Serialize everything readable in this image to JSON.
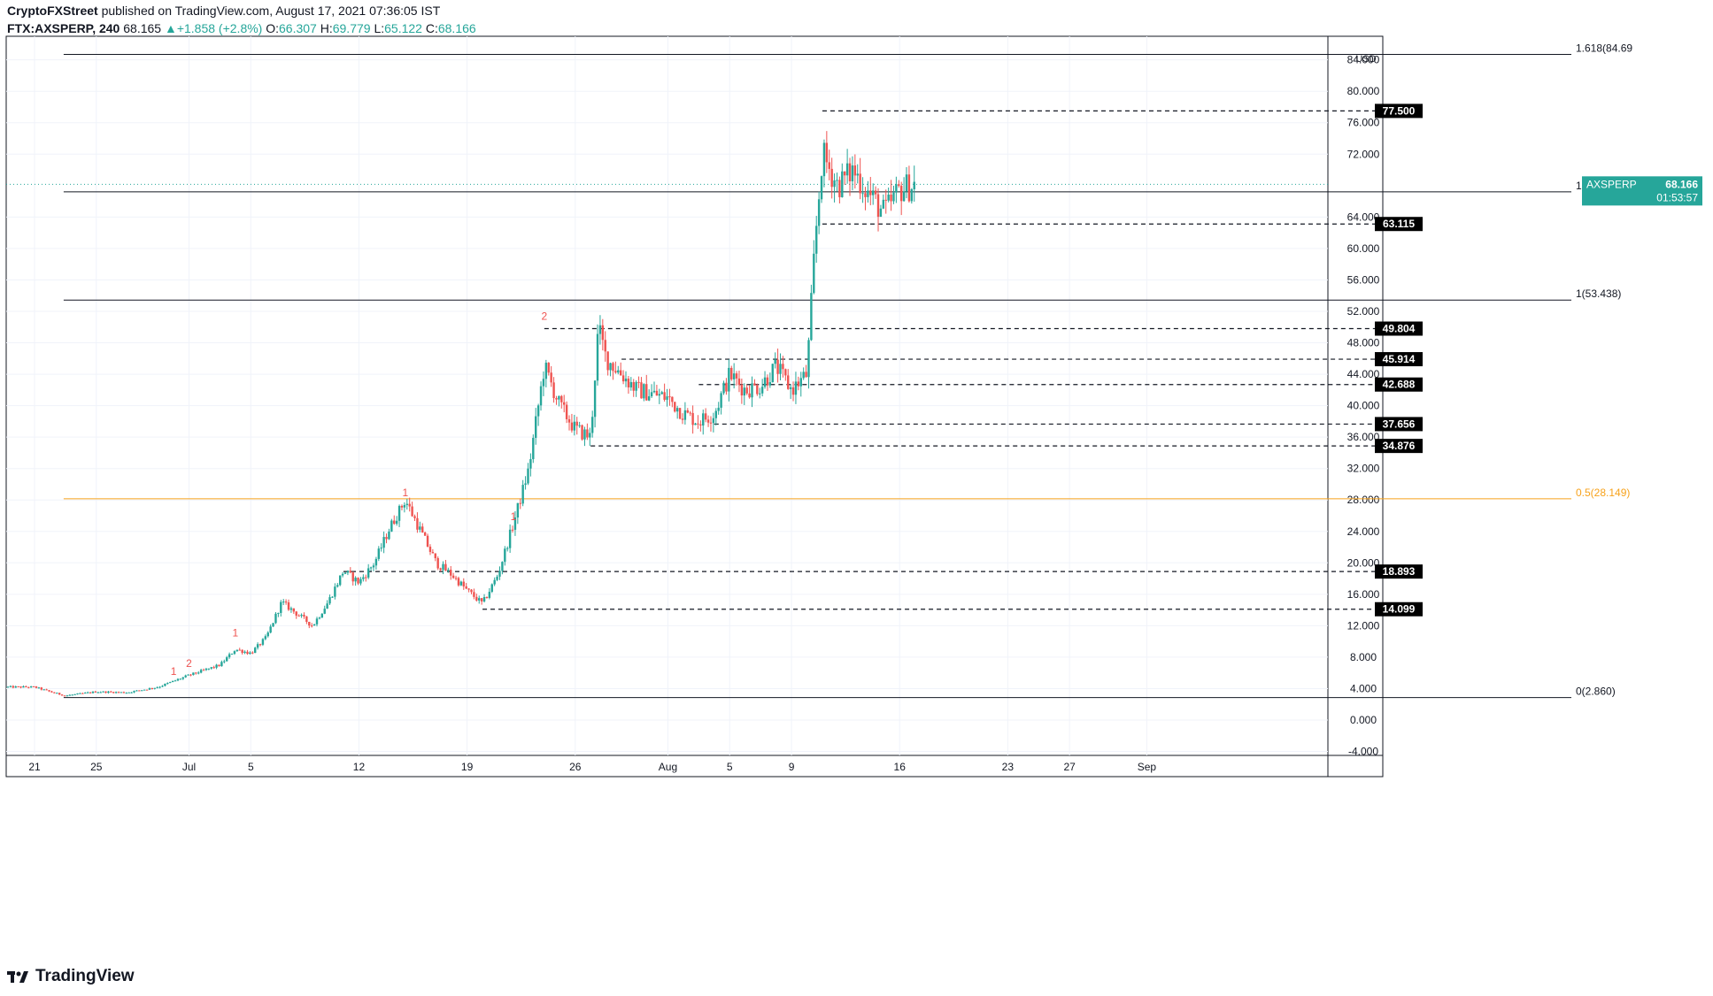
{
  "header": {
    "publisher": "CryptoFXStreet",
    "published_text": "published on TradingView.com, August 17, 2021 07:36:05 IST",
    "symbol_line": "FTX:AXSPERP, 240",
    "last": "68.165",
    "change": "+1.858 (+2.8%)",
    "o_label": "O:",
    "o": "66.307",
    "h_label": "H:",
    "h": "69.779",
    "l_label": "L:",
    "l": "65.122",
    "c_label": "C:",
    "c": "68.166"
  },
  "footer": {
    "brand": "TradingView"
  },
  "colors": {
    "up": "#26a69a",
    "down": "#ef5350",
    "fib_half": "#f7a21b",
    "price_tag": "#26a69a",
    "label_bg": "#000000"
  },
  "chart_data": {
    "type": "candlestick",
    "symbol": "AXSPERP",
    "currency": "USD",
    "ylim": [
      -4.5,
      87
    ],
    "x_ticks": [
      {
        "label": "21",
        "date": "2021-06-21"
      },
      {
        "label": "25",
        "date": "2021-06-25"
      },
      {
        "label": "Jul",
        "date": "2021-07-01"
      },
      {
        "label": "5",
        "date": "2021-07-05"
      },
      {
        "label": "12",
        "date": "2021-07-12"
      },
      {
        "label": "19",
        "date": "2021-07-19"
      },
      {
        "label": "26",
        "date": "2021-07-26"
      },
      {
        "label": "Aug",
        "date": "2021-08-01"
      },
      {
        "label": "5",
        "date": "2021-08-05"
      },
      {
        "label": "9",
        "date": "2021-08-09"
      },
      {
        "label": "16",
        "date": "2021-08-16"
      },
      {
        "label": "23",
        "date": "2021-08-23"
      },
      {
        "label": "27",
        "date": "2021-08-27"
      },
      {
        "label": "Sep",
        "date": "2021-09-01"
      }
    ],
    "y_ticks": [
      "-4.000",
      "0.000",
      "4.000",
      "8.000",
      "12.000",
      "16.000",
      "20.000",
      "24.000",
      "28.000",
      "32.000",
      "36.000",
      "40.000",
      "44.000",
      "48.000",
      "52.000",
      "56.000",
      "60.000",
      "64.000",
      "72.000",
      "76.000",
      "80.000",
      "84.000"
    ],
    "fib_levels": [
      {
        "label": "1.618(84.69",
        "value": 84.69,
        "color": "#131722"
      },
      {
        "label": "1(53.438)",
        "value": 53.438,
        "color": "#131722"
      },
      {
        "label": "0.5(28.149)",
        "value": 28.149,
        "color": "#f7a21b"
      },
      {
        "label": "0(2.860)",
        "value": 2.86,
        "color": "#131722"
      },
      {
        "label": "1",
        "value": 67.2,
        "color": "#131722"
      }
    ],
    "levels": [
      {
        "label": "77.500",
        "value": 77.5,
        "from": "2021-08-11"
      },
      {
        "label": "63.115",
        "value": 63.115,
        "from": "2021-08-11"
      },
      {
        "label": "49.804",
        "value": 49.804,
        "from": "2021-07-24"
      },
      {
        "label": "45.914",
        "value": 45.914,
        "from": "2021-07-29"
      },
      {
        "label": "42.688",
        "value": 42.688,
        "from": "2021-08-03"
      },
      {
        "label": "37.656",
        "value": 37.656,
        "from": "2021-08-04"
      },
      {
        "label": "34.876",
        "value": 34.876,
        "from": "2021-07-27"
      },
      {
        "label": "18.893",
        "value": 18.893,
        "from": "2021-07-11"
      },
      {
        "label": "14.099",
        "value": 14.099,
        "from": "2021-07-20"
      }
    ],
    "markers": [
      {
        "label": "1",
        "date": "2021-06-30",
        "value": 5.3
      },
      {
        "label": "2",
        "date": "2021-07-01",
        "value": 6.3
      },
      {
        "label": "1",
        "date": "2021-07-04",
        "value": 10.2
      },
      {
        "label": "1",
        "date": "2021-07-15",
        "value": 28.0
      },
      {
        "label": "1",
        "date": "2021-07-22",
        "value": 25.0
      },
      {
        "label": "2",
        "date": "2021-07-24",
        "value": 50.5
      }
    ],
    "current_price": {
      "symbol": "AXSPERP",
      "value": 68.166,
      "label": "68.166",
      "countdown": "01:53:57"
    },
    "path": [
      [
        "2021-06-21",
        4.2
      ],
      [
        "2021-06-22",
        3.6
      ],
      [
        "2021-06-23",
        3.1
      ],
      [
        "2021-06-25",
        3.6
      ],
      [
        "2021-06-27",
        3.5
      ],
      [
        "2021-06-29",
        4.2
      ],
      [
        "2021-07-01",
        5.7
      ],
      [
        "2021-07-03",
        7.0
      ],
      [
        "2021-07-04",
        9.0
      ],
      [
        "2021-07-05",
        8.5
      ],
      [
        "2021-07-06",
        10.5
      ],
      [
        "2021-07-07",
        15.0
      ],
      [
        "2021-07-09",
        12.0
      ],
      [
        "2021-07-10",
        15.0
      ],
      [
        "2021-07-11",
        19.0
      ],
      [
        "2021-07-12",
        17.5
      ],
      [
        "2021-07-13",
        20.0
      ],
      [
        "2021-07-14",
        24.5
      ],
      [
        "2021-07-15",
        28.0
      ],
      [
        "2021-07-16",
        24.0
      ],
      [
        "2021-07-17",
        20.0
      ],
      [
        "2021-07-18",
        18.5
      ],
      [
        "2021-07-19",
        16.5
      ],
      [
        "2021-07-20",
        14.8
      ],
      [
        "2021-07-21",
        18.5
      ],
      [
        "2021-07-22",
        25.0
      ],
      [
        "2021-07-23",
        32.0
      ],
      [
        "2021-07-24",
        45.0
      ],
      [
        "2021-07-25",
        40.0
      ],
      [
        "2021-07-26",
        37.0
      ],
      [
        "2021-07-27",
        36.0
      ],
      [
        "2021-07-27 12:00",
        50.0
      ],
      [
        "2021-07-28",
        46.0
      ],
      [
        "2021-07-30",
        42.0
      ],
      [
        "2021-08-01",
        41.0
      ],
      [
        "2021-08-02",
        39.0
      ],
      [
        "2021-08-03",
        38.0
      ],
      [
        "2021-08-04",
        39.0
      ],
      [
        "2021-08-05",
        44.0
      ],
      [
        "2021-08-06",
        42.0
      ],
      [
        "2021-08-07",
        42.5
      ],
      [
        "2021-08-08",
        45.0
      ],
      [
        "2021-08-09",
        42.0
      ],
      [
        "2021-08-10",
        44.0
      ],
      [
        "2021-08-10 12:00",
        60.0
      ],
      [
        "2021-08-11",
        72.0
      ],
      [
        "2021-08-12",
        68.0
      ],
      [
        "2021-08-13",
        70.0
      ],
      [
        "2021-08-14",
        67.0
      ],
      [
        "2021-08-15",
        64.5
      ],
      [
        "2021-08-16",
        67.5
      ],
      [
        "2021-08-17",
        68.166
      ]
    ]
  }
}
